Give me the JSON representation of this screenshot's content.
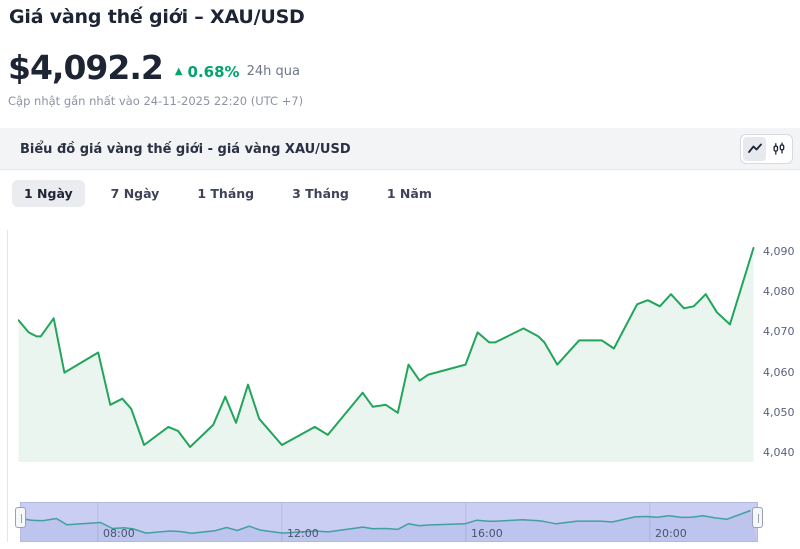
{
  "header": {
    "title": "Giá vàng thế giới – XAU/USD",
    "price": "$4,092.2",
    "change_arrow": "▲",
    "change_pct": "0.68%",
    "change_period": "24h qua",
    "updated": "Cập nhật gần nhất vào 24-11-2025 22:20 (UTC +7)"
  },
  "chart_card": {
    "title": "Biểu đồ giá vàng thế giới - giá vàng XAU/USD",
    "toolbar": {
      "line_icon": "line-chart-icon",
      "candle_icon": "candlestick-icon"
    },
    "tabs": [
      {
        "label": "1 Ngày",
        "active": true
      },
      {
        "label": "7 Ngày",
        "active": false
      },
      {
        "label": "1 Tháng",
        "active": false
      },
      {
        "label": "3 Tháng",
        "active": false
      },
      {
        "label": "1 Năm",
        "active": false
      }
    ]
  },
  "chart_data": {
    "type": "line",
    "title": "Giá vàng XAU/USD - 1 ngày",
    "x_unit": "hour_of_day",
    "xlim": [
      6.33,
      22.33
    ],
    "ylim": [
      4035,
      4095
    ],
    "x": [
      6.34,
      6.56,
      6.73,
      6.82,
      7.1,
      7.33,
      8.06,
      8.32,
      8.58,
      8.77,
      9.05,
      9.57,
      9.78,
      10.04,
      10.54,
      10.8,
      11.03,
      11.29,
      11.53,
      12.02,
      12.73,
      13.01,
      13.76,
      13.98,
      14.26,
      14.52,
      14.75,
      14.99,
      15.18,
      15.98,
      16.24,
      16.49,
      16.62,
      17.23,
      17.55,
      17.68,
      17.96,
      18.43,
      18.92,
      19.18,
      19.68,
      19.91,
      20.17,
      20.41,
      20.69,
      20.9,
      21.16,
      21.4,
      21.68,
      22.19
    ],
    "values": [
      4073,
      4070,
      4069,
      4069,
      4073.5,
      4060,
      4065,
      4052,
      4053.5,
      4051,
      4042,
      4046.5,
      4045.5,
      4041.5,
      4047,
      4054,
      4047.5,
      4057,
      4048.5,
      4042,
      4046.5,
      4044.5,
      4055,
      4051.5,
      4052,
      4050,
      4062,
      4058,
      4059.5,
      4062,
      4070,
      4067.5,
      4067.5,
      4071,
      4069,
      4067.5,
      4062,
      4068,
      4068,
      4066,
      4077,
      4078,
      4076.5,
      4079.5,
      4076,
      4076.5,
      4079.5,
      4075,
      4072,
      4091
    ],
    "y_ticks": [
      "4,090",
      "4,080",
      "4,070",
      "4,060",
      "4,050",
      "4,040"
    ],
    "y_tick_values": [
      4090,
      4080,
      4070,
      4060,
      4050,
      4040
    ],
    "x_ticks": [
      "08:00",
      "12:00",
      "16:00",
      "20:00"
    ],
    "x_tick_values": [
      8,
      12,
      16,
      20
    ],
    "grid": "navigator-vertical-only",
    "legend": "none",
    "line_color": "#23a45b",
    "fill_color": "#eaf5ef",
    "navigator": {
      "bg_color": "#c9cef2",
      "line_color": "#43a0a0",
      "gridline_color": "#b3baea",
      "fill_color": "rgba(90,110,200,0.10)"
    }
  }
}
